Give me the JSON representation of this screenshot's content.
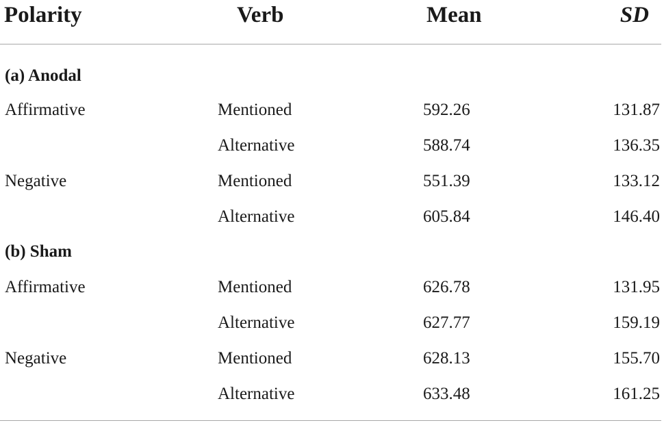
{
  "header": {
    "polarity": "Polarity",
    "verb": "Verb",
    "mean": "Mean",
    "sd": "SD"
  },
  "sections": [
    {
      "label": "(a) Anodal",
      "rows": [
        {
          "polarity": "Affirmative",
          "verb": "Mentioned",
          "mean": "592.26",
          "sd": "131.87"
        },
        {
          "polarity": "",
          "verb": "Alternative",
          "mean": "588.74",
          "sd": "136.35"
        },
        {
          "polarity": "Negative",
          "verb": "Mentioned",
          "mean": "551.39",
          "sd": "133.12"
        },
        {
          "polarity": "",
          "verb": "Alternative",
          "mean": "605.84",
          "sd": "146.40"
        }
      ]
    },
    {
      "label": "(b) Sham",
      "rows": [
        {
          "polarity": "Affirmative",
          "verb": "Mentioned",
          "mean": "626.78",
          "sd": "131.95"
        },
        {
          "polarity": "",
          "verb": "Alternative",
          "mean": "627.77",
          "sd": "159.19"
        },
        {
          "polarity": "Negative",
          "verb": "Mentioned",
          "mean": "628.13",
          "sd": "155.70"
        },
        {
          "polarity": "",
          "verb": "Alternative",
          "mean": "633.48",
          "sd": "161.25"
        }
      ]
    }
  ]
}
